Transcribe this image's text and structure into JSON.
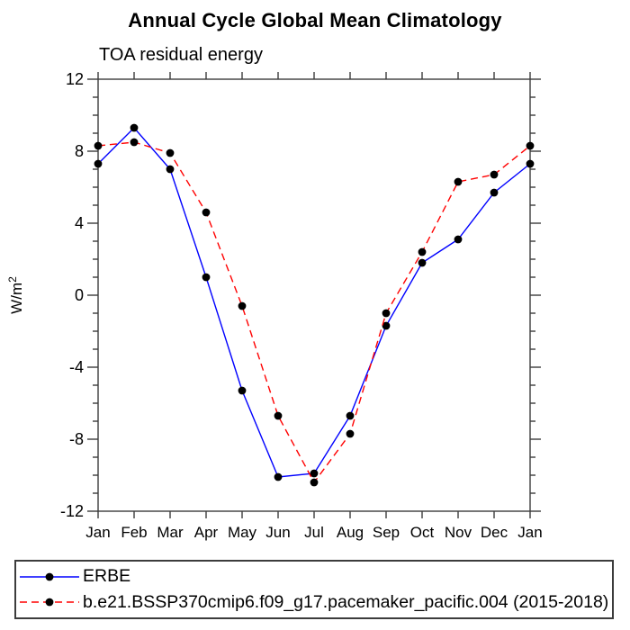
{
  "title": "Annual Cycle Global Mean Climatology",
  "subtitle": "TOA residual energy",
  "colors": {
    "axis": "#3c3c3c",
    "text": "#000000",
    "background": "#ffffff",
    "erbe_line": "#0000ff",
    "model_line": "#ff0000",
    "marker": "#000000"
  },
  "chart_data": {
    "type": "line",
    "title": "Annual Cycle Global Mean Climatology",
    "subtitle": "TOA residual energy",
    "xlabel": "",
    "ylabel": "W/m²",
    "ylim": [
      -12,
      12
    ],
    "ytick_step_major": 4,
    "ytick_step_minor": 1,
    "grid": false,
    "legend_position": "bottom",
    "categories": [
      "Jan",
      "Feb",
      "Mar",
      "Apr",
      "May",
      "Jun",
      "Jul",
      "Aug",
      "Sep",
      "Oct",
      "Nov",
      "Dec",
      "Jan"
    ],
    "series": [
      {
        "name": "ERBE",
        "line_color": "#0000ff",
        "line_style": "solid",
        "marker": "filled-circle",
        "marker_color": "#000000",
        "values": [
          7.3,
          9.3,
          7.0,
          1.0,
          -5.3,
          -10.1,
          -9.9,
          -6.7,
          -1.7,
          1.8,
          3.1,
          5.7,
          7.3
        ]
      },
      {
        "name": "b.e21.BSSP370cmip6.f09_g17.pacemaker_pacific.004 (2015-2018)",
        "line_color": "#ff0000",
        "line_style": "dashed",
        "marker": "filled-circle",
        "marker_color": "#000000",
        "values": [
          8.3,
          8.5,
          7.9,
          4.6,
          -0.6,
          -6.7,
          -10.4,
          -7.7,
          -1.0,
          2.4,
          6.3,
          6.7,
          8.3
        ]
      }
    ]
  }
}
